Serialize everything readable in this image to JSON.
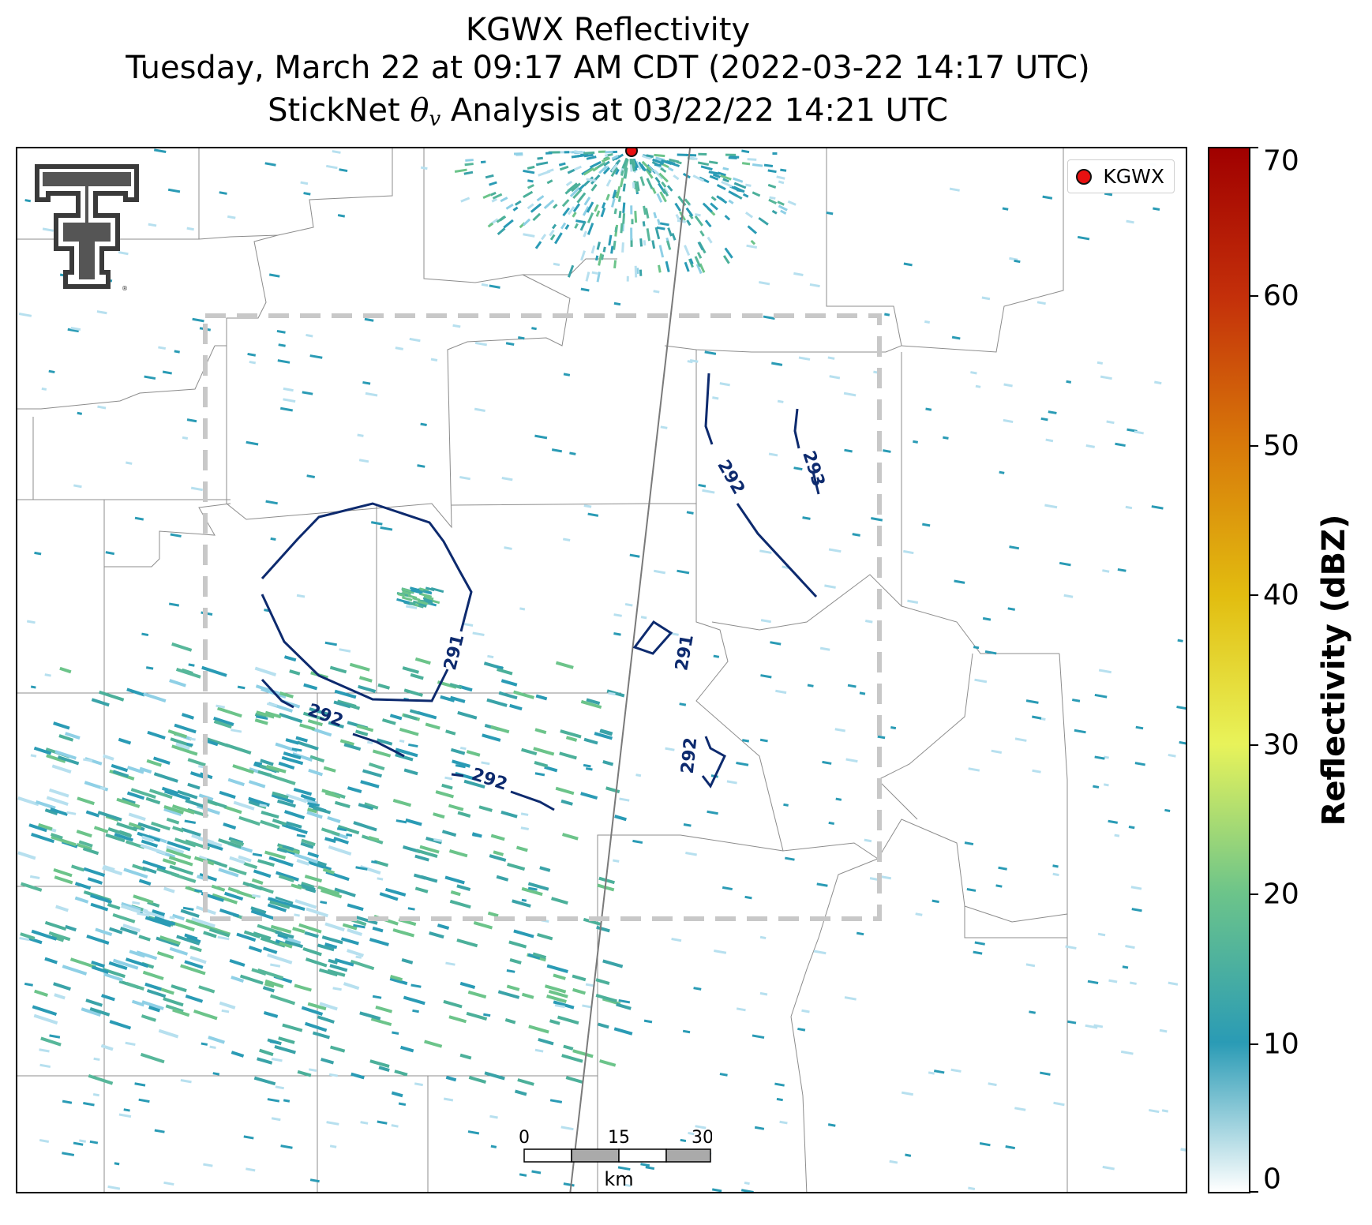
{
  "title": {
    "line1": "KGWX Reflectivity",
    "line2": "Tuesday, March 22 at 09:17 AM CDT (2022-03-22 14:17 UTC)",
    "line3_prefix": "StickNet ",
    "line3_symbol": "θ",
    "line3_subscript": "v",
    "line3_suffix": " Analysis at 03/22/22 14:21 UTC"
  },
  "legend": {
    "radar_label": "KGWX",
    "radar_marker_color": "#e81010"
  },
  "logo": {
    "name": "texas-tech-double-t-logo",
    "mark": "®"
  },
  "contours": {
    "color": "#0d2a6e",
    "levels": [
      {
        "value": 291,
        "label": "291"
      },
      {
        "value": 291,
        "label": "291"
      },
      {
        "value": 292,
        "label": "292"
      },
      {
        "value": 292,
        "label": "292"
      },
      {
        "value": 292,
        "label": "292"
      },
      {
        "value": 292,
        "label": "292"
      },
      {
        "value": 293,
        "label": "293"
      }
    ]
  },
  "scale_bar": {
    "ticks": [
      "0",
      "15",
      "30"
    ],
    "unit": "km"
  },
  "colorbar": {
    "label": "Reflectivity (dBZ)",
    "min": 0,
    "max": 70,
    "ticks": [
      "0",
      "10",
      "20",
      "30",
      "40",
      "50",
      "60",
      "70"
    ],
    "colors": [
      "#ffffff",
      "#2a9bb5",
      "#6cc48a",
      "#e8f35a",
      "#e2bd10",
      "#d87a0a",
      "#c4300a",
      "#a00000"
    ]
  },
  "analysis_box": {
    "style": "dashed",
    "color": "#c8c8c8"
  }
}
